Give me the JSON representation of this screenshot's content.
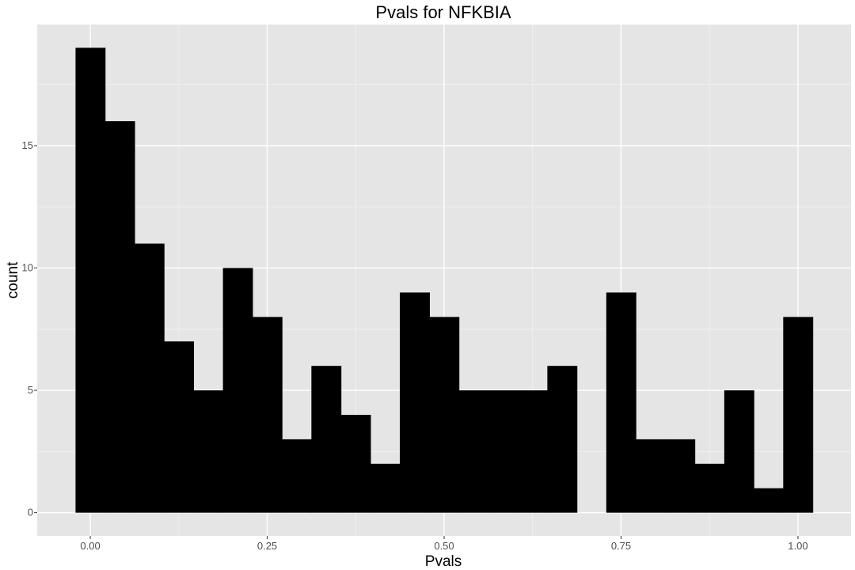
{
  "chart_data": {
    "type": "bar",
    "title": "Pvals for NFKBIA",
    "xlabel": "Pvals",
    "ylabel": "count",
    "bin_width": 0.0417,
    "bins": [
      {
        "center": 0.0,
        "count": 19
      },
      {
        "center": 0.0417,
        "count": 16
      },
      {
        "center": 0.0833,
        "count": 11
      },
      {
        "center": 0.125,
        "count": 7
      },
      {
        "center": 0.1667,
        "count": 5
      },
      {
        "center": 0.2083,
        "count": 10
      },
      {
        "center": 0.25,
        "count": 8
      },
      {
        "center": 0.2917,
        "count": 3
      },
      {
        "center": 0.3333,
        "count": 6
      },
      {
        "center": 0.375,
        "count": 4
      },
      {
        "center": 0.4167,
        "count": 2
      },
      {
        "center": 0.4583,
        "count": 9
      },
      {
        "center": 0.5,
        "count": 8
      },
      {
        "center": 0.5417,
        "count": 5
      },
      {
        "center": 0.5833,
        "count": 5
      },
      {
        "center": 0.625,
        "count": 5
      },
      {
        "center": 0.6667,
        "count": 6
      },
      {
        "center": 0.7083,
        "count": 0
      },
      {
        "center": 0.75,
        "count": 9
      },
      {
        "center": 0.7917,
        "count": 3
      },
      {
        "center": 0.8333,
        "count": 3
      },
      {
        "center": 0.875,
        "count": 2
      },
      {
        "center": 0.9167,
        "count": 5
      },
      {
        "center": 0.9583,
        "count": 1
      },
      {
        "center": 1.0,
        "count": 8
      }
    ],
    "xlim": [
      -0.075,
      1.075
    ],
    "ylim": [
      -0.95,
      19.95
    ],
    "x_ticks": [
      {
        "value": 0.0,
        "label": "0.00"
      },
      {
        "value": 0.25,
        "label": "0.25"
      },
      {
        "value": 0.5,
        "label": "0.50"
      },
      {
        "value": 0.75,
        "label": "0.75"
      },
      {
        "value": 1.0,
        "label": "1.00"
      }
    ],
    "y_ticks": [
      {
        "value": 0,
        "label": "0"
      },
      {
        "value": 5,
        "label": "5"
      },
      {
        "value": 10,
        "label": "10"
      },
      {
        "value": 15,
        "label": "15"
      }
    ],
    "grid": true,
    "colors": {
      "panel_background": "#e5e5e5",
      "grid_major": "#ffffff",
      "grid_minor": "#f0f0f0",
      "bar_fill": "#000000",
      "tick_label": "#4d4d4d"
    }
  }
}
